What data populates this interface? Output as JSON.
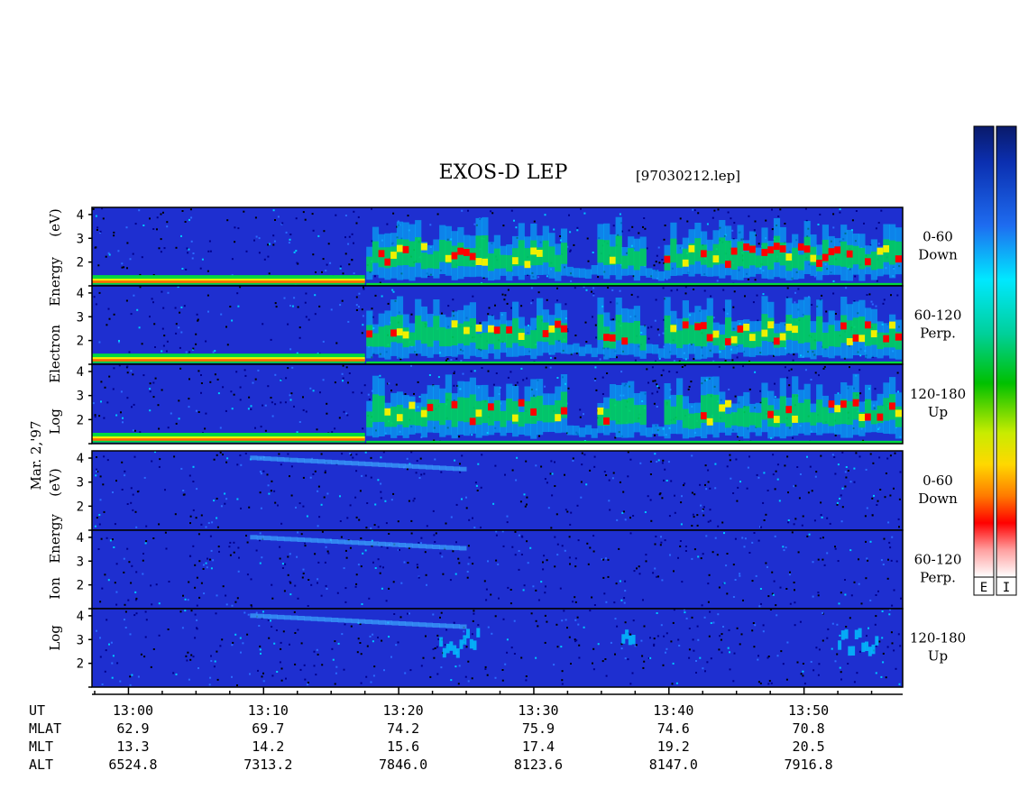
{
  "chart_data": {
    "type": "heatmap",
    "title": "EXOS-D LEP",
    "file_label": "[97030212.lep]",
    "date_label": "Mar. 2,'97",
    "electron_group": {
      "ylabel_parts": [
        "Log",
        "Electron",
        "Energy",
        "(eV)"
      ],
      "panels": [
        {
          "pitch": "0-60",
          "dir": "Down"
        },
        {
          "pitch": "60-120",
          "dir": "Perp."
        },
        {
          "pitch": "120-180",
          "dir": "Up"
        }
      ],
      "yticks": [
        "2",
        "3",
        "4"
      ],
      "ylim": [
        1,
        4.3
      ]
    },
    "ion_group": {
      "ylabel_parts": [
        "Log",
        "Ion",
        "Energy",
        "(eV)"
      ],
      "panels": [
        {
          "pitch": "0-60",
          "dir": "Down"
        },
        {
          "pitch": "60-120",
          "dir": "Perp."
        },
        {
          "pitch": "120-180",
          "dir": "Up"
        }
      ],
      "yticks": [
        "2",
        "3",
        "4"
      ],
      "ylim": [
        1,
        4.3
      ]
    },
    "time_range_min": [
      -2.7,
      57.3
    ],
    "time_ticks": [
      {
        "t": 0,
        "ut": "13:00",
        "mlat": "62.9",
        "mlt": "13.3",
        "alt": "6524.8"
      },
      {
        "t": 10,
        "ut": "13:10",
        "mlat": "69.7",
        "mlt": "14.2",
        "alt": "7313.2"
      },
      {
        "t": 20,
        "ut": "13:20",
        "mlat": "74.2",
        "mlt": "15.6",
        "alt": "7846.0"
      },
      {
        "t": 30,
        "ut": "13:30",
        "mlat": "75.9",
        "mlt": "17.4",
        "alt": "8123.6"
      },
      {
        "t": 40,
        "ut": "13:40",
        "mlat": "74.6",
        "mlt": "19.2",
        "alt": "8147.0"
      },
      {
        "t": 50,
        "ut": "13:50",
        "mlat": "70.8",
        "mlt": "20.5",
        "alt": "7916.8"
      }
    ],
    "row_labels": [
      "UT",
      "MLAT",
      "MLT",
      "ALT"
    ],
    "colorbars": [
      {
        "label": "E"
      },
      {
        "label": "I"
      }
    ],
    "colors": {
      "background": "#1e2fd0",
      "low": "#00008a",
      "mid": "#00c8ff",
      "green": "#00d840",
      "yellow": "#f0f000",
      "red": "#ff0000",
      "high": "#ffffff"
    }
  }
}
